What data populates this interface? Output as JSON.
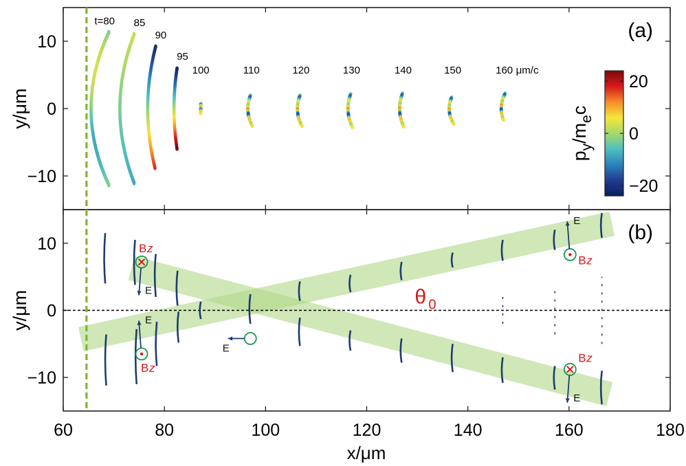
{
  "chart_data": {
    "type": "scatter",
    "xlabel": "x/μm",
    "xlim": [
      60,
      180
    ],
    "xticks": [
      60,
      80,
      100,
      120,
      140,
      160,
      180
    ],
    "yticks": [
      -10,
      0,
      10
    ],
    "ylim": [
      -15,
      15
    ],
    "vline_x": 64.6,
    "panels": [
      {
        "label": "(a)",
        "ylabel": "y/μm",
        "colorbar": {
          "label_main": "p",
          "label_sub1": "y",
          "label_mid": "/m",
          "label_sub2": "e",
          "label_end": "c",
          "ticks": [
            20,
            0,
            -20
          ],
          "range": [
            -24,
            24
          ],
          "colors": [
            "#7b0a0a",
            "#d7191c",
            "#f58d2a",
            "#f5e63b",
            "#a6d96a",
            "#4fbfbf",
            "#2b83ba",
            "#1f3c8f",
            "#0b1f5f"
          ]
        },
        "snapshots": [
          {
            "label": "t=80",
            "x": 69.0,
            "bow": 3.5,
            "half": 11.3,
            "offset": 0.0,
            "grad": "sine"
          },
          {
            "label": "85",
            "x": 74.0,
            "bow": 2.8,
            "half": 11.0,
            "offset": 0.0,
            "grad": "cyan-olive"
          },
          {
            "label": "90",
            "x": 78.2,
            "bow": 1.5,
            "half": 9.0,
            "offset": 0.2,
            "grad": "blue-red"
          },
          {
            "label": "95",
            "x": 82.5,
            "bow": 0.6,
            "half": 6.0,
            "offset": 0.0,
            "grad": "blue-darkred"
          },
          {
            "label": "100",
            "x": 87.2,
            "bow": 0.0,
            "half": 0.7,
            "offset": 0.0,
            "grad": "mixed"
          },
          {
            "label": "110",
            "x": 97.2,
            "bow": 0.7,
            "half": 2.3,
            "offset": -0.3,
            "grad": "mixed"
          },
          {
            "label": "120",
            "x": 107.0,
            "bow": 0.7,
            "half": 2.3,
            "offset": -0.3,
            "grad": "mixed"
          },
          {
            "label": "130",
            "x": 117.0,
            "bow": 0.7,
            "half": 2.5,
            "offset": -0.3,
            "grad": "mixed"
          },
          {
            "label": "140",
            "x": 127.2,
            "bow": 0.7,
            "half": 2.5,
            "offset": -0.2,
            "grad": "mixed"
          },
          {
            "label": "150",
            "x": 137.0,
            "bow": 0.7,
            "half": 2.0,
            "offset": -0.3,
            "grad": "mixed"
          },
          {
            "label": "160",
            "x": 147.2,
            "bow": 0.6,
            "half": 2.0,
            "offset": 0.3,
            "grad": "mixed"
          }
        ],
        "time_unit": "μm/c"
      },
      {
        "label": "(b)",
        "ylabel": "y/μm",
        "theta_label": "θ",
        "theta_sub": "0",
        "band_color": "#b3d98a",
        "bands": [
          {
            "from": [
              63.5,
              -4.3
            ],
            "to": [
              168.5,
              12.9
            ]
          },
          {
            "from": [
              73.5,
              6.3
            ],
            "to": [
              168.0,
              -12.5
            ]
          }
        ],
        "fronts": [
          {
            "x": 68.5,
            "y": [
              -3.6,
              -11.2
            ]
          },
          {
            "x": 68.3,
            "y": [
              4.0,
              11.5
            ]
          },
          {
            "x": 74.5,
            "y": [
              -2.8,
              -11.0
            ]
          },
          {
            "x": 74.2,
            "y": [
              3.8,
              10.5
            ]
          },
          {
            "x": 78.5,
            "y": [
              -1.7,
              -8.3
            ]
          },
          {
            "x": 78.3,
            "y": [
              2.0,
              8.4
            ]
          },
          {
            "x": 82.8,
            "y": [
              -0.2,
              -4.8
            ]
          },
          {
            "x": 82.6,
            "y": [
              0.7,
              5.9
            ]
          },
          {
            "x": 87.2,
            "y": [
              -1.3,
              1.3
            ]
          },
          {
            "x": 97.0,
            "y": [
              -2.0,
              2.4
            ]
          },
          {
            "x": 106.8,
            "y": [
              1.4,
              4.3
            ]
          },
          {
            "x": 106.8,
            "y": [
              -1.1,
              -5.3
            ]
          },
          {
            "x": 116.8,
            "y": [
              2.7,
              5.3
            ]
          },
          {
            "x": 116.8,
            "y": [
              -3.0,
              -6.0
            ]
          },
          {
            "x": 126.9,
            "y": [
              4.5,
              7.2
            ]
          },
          {
            "x": 126.9,
            "y": [
              -4.2,
              -7.8
            ]
          },
          {
            "x": 137.0,
            "y": [
              6.4,
              8.6
            ]
          },
          {
            "x": 137.0,
            "y": [
              -5.0,
              -9.2
            ]
          },
          {
            "x": 146.9,
            "y": [
              7.4,
              10.5
            ]
          },
          {
            "x": 146.9,
            "y": [
              -7.0,
              -10.8
            ]
          },
          {
            "x": 157.2,
            "y": [
              9.0,
              12.0
            ]
          },
          {
            "x": 157.2,
            "y": [
              -8.3,
              -11.8
            ]
          },
          {
            "x": 166.5,
            "y": [
              10.8,
              14.5
            ]
          },
          {
            "x": 166.5,
            "y": [
              -9.0,
              -14.0
            ]
          }
        ],
        "dashed_fronts": [
          {
            "x": 146.9,
            "y": [
              -2.0,
              2.0
            ]
          },
          {
            "x": 157.2,
            "y": [
              -3.6,
              3.6
            ]
          },
          {
            "x": 166.5,
            "y": [
              -5.0,
              5.0
            ]
          }
        ],
        "field_markers": [
          {
            "x": 75.5,
            "y": 7.2,
            "kind": "cross",
            "label": "B",
            "sub": "z",
            "e_dir": "down",
            "e_label": "E"
          },
          {
            "x": 75.5,
            "y": -6.5,
            "kind": "dot",
            "label": "B",
            "sub": "z",
            "e_dir": "up",
            "e_label": "E"
          },
          {
            "x": 97.0,
            "y": -4.2,
            "kind": "none",
            "label": "",
            "sub": "",
            "e_dir": "left",
            "e_label": "E"
          },
          {
            "x": 160.2,
            "y": 8.3,
            "kind": "dot",
            "label": "B",
            "sub": "z",
            "e_dir": "up",
            "e_label": "E"
          },
          {
            "x": 160.2,
            "y": -8.8,
            "kind": "cross",
            "label": "B",
            "sub": "z",
            "e_dir": "down",
            "e_label": "E"
          }
        ]
      }
    ],
    "colors": {
      "front": "#1f3c6e",
      "vline": "#7fb72e",
      "marker": "#1a9850",
      "bz": "#d7191c",
      "arrow": "#1f3c6e",
      "theta": "#d7191c"
    }
  }
}
